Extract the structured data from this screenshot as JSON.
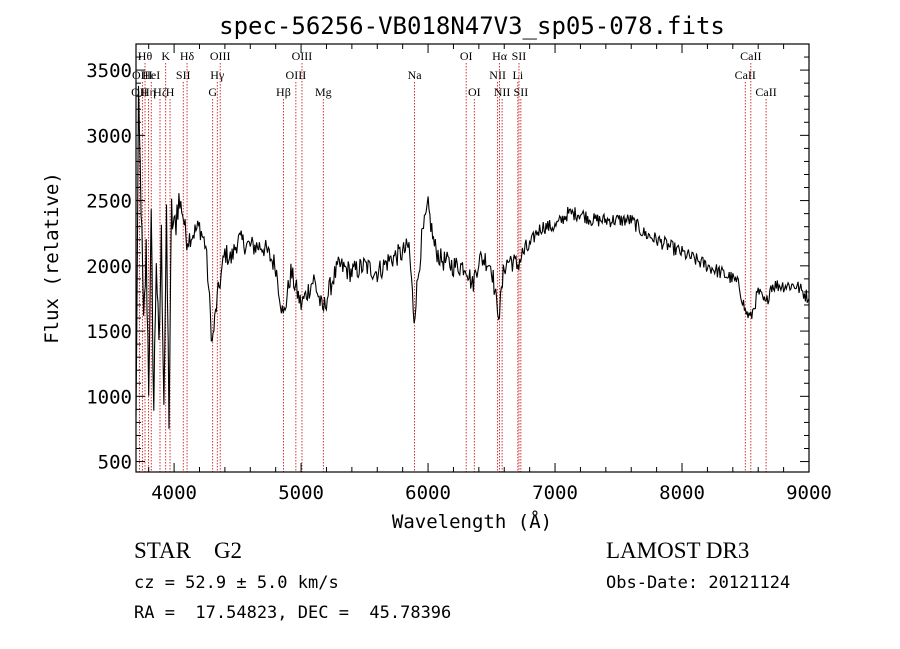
{
  "chart_data": {
    "type": "line",
    "title": "spec-56256-VB018N47V3_sp05-078.fits",
    "xlabel": "Wavelength (Å)",
    "ylabel": "Flux (relative)",
    "xlim": [
      3700,
      9000
    ],
    "ylim": [
      420,
      3700
    ],
    "xticks": [
      4000,
      5000,
      6000,
      7000,
      8000,
      9000
    ],
    "yticks": [
      500,
      1000,
      1500,
      2000,
      2500,
      3000,
      3500
    ],
    "series": [
      {
        "name": "spectrum",
        "color": "#000000",
        "x": [
          3700,
          3720,
          3740,
          3760,
          3780,
          3800,
          3820,
          3840,
          3860,
          3880,
          3900,
          3920,
          3940,
          3960,
          3980,
          4000,
          4030,
          4060,
          4100,
          4150,
          4200,
          4250,
          4300,
          4340,
          4400,
          4450,
          4500,
          4600,
          4700,
          4800,
          4860,
          4920,
          5000,
          5100,
          5170,
          5250,
          5300,
          5400,
          5500,
          5600,
          5700,
          5800,
          5850,
          5890,
          5950,
          6000,
          6050,
          6100,
          6200,
          6300,
          6350,
          6400,
          6450,
          6500,
          6540,
          6563,
          6600,
          6650,
          6700,
          6750,
          6800,
          6850,
          6900,
          6950,
          7000,
          7050,
          7100,
          7200,
          7300,
          7400,
          7500,
          7600,
          7700,
          7800,
          7900,
          8000,
          8100,
          8200,
          8300,
          8400,
          8450,
          8498,
          8542,
          8600,
          8662,
          8700,
          8800,
          8900,
          9000
        ],
        "values": [
          800,
          3200,
          2500,
          1500,
          2100,
          1100,
          2300,
          900,
          2100,
          1300,
          2200,
          1000,
          2300,
          850,
          2400,
          2250,
          2500,
          2450,
          2200,
          2250,
          2300,
          2150,
          1400,
          1750,
          2100,
          2050,
          2200,
          2150,
          2150,
          2000,
          1600,
          1950,
          1700,
          1900,
          1650,
          1900,
          2000,
          1950,
          2000,
          1950,
          2050,
          2100,
          2150,
          1600,
          2200,
          2450,
          2150,
          2050,
          2000,
          2000,
          1850,
          2050,
          2050,
          2000,
          1700,
          1650,
          2000,
          2050,
          2000,
          2100,
          2150,
          2250,
          2300,
          2300,
          2300,
          2350,
          2400,
          2400,
          2350,
          2350,
          2350,
          2350,
          2250,
          2200,
          2150,
          2100,
          2050,
          2000,
          1950,
          1900,
          1850,
          1650,
          1600,
          1800,
          1700,
          1850,
          1850,
          1850,
          1750
        ]
      }
    ],
    "line_markers": [
      {
        "wave": 3727,
        "label": "OII",
        "row": 2
      },
      {
        "wave": 3750,
        "label": "OIII",
        "row": 1
      },
      {
        "wave": 3771,
        "label": "Hθ",
        "row": 0
      },
      {
        "wave": 3798,
        "label": "Hη",
        "row": 2
      },
      {
        "wave": 3820,
        "label": "HeI",
        "row": 1
      },
      {
        "wave": 3889,
        "label": "Hζ",
        "row": 2
      },
      {
        "wave": 3934,
        "label": "K",
        "row": 0
      },
      {
        "wave": 3968,
        "label": "H",
        "row": 2
      },
      {
        "wave": 4072,
        "label": "SII",
        "row": 1
      },
      {
        "wave": 4102,
        "label": "Hδ",
        "row": 0
      },
      {
        "wave": 4304,
        "label": "G",
        "row": 2
      },
      {
        "wave": 4340,
        "label": "Hγ",
        "row": 1
      },
      {
        "wave": 4363,
        "label": "OIII",
        "row": 0
      },
      {
        "wave": 4861,
        "label": "Hβ",
        "row": 2
      },
      {
        "wave": 4959,
        "label": "OIII",
        "row": 1
      },
      {
        "wave": 5007,
        "label": "OIII",
        "row": 0
      },
      {
        "wave": 5175,
        "label": "Mg",
        "row": 2
      },
      {
        "wave": 5894,
        "label": "Na",
        "row": 1
      },
      {
        "wave": 6300,
        "label": "OI",
        "row": 0
      },
      {
        "wave": 6364,
        "label": "OI",
        "row": 2
      },
      {
        "wave": 6548,
        "label": "NII",
        "row": 1
      },
      {
        "wave": 6563,
        "label": "Hα",
        "row": 0
      },
      {
        "wave": 6583,
        "label": "NII",
        "row": 2
      },
      {
        "wave": 6707,
        "label": "Li",
        "row": 1
      },
      {
        "wave": 6716,
        "label": "SII",
        "row": 0
      },
      {
        "wave": 6731,
        "label": "SII",
        "row": 2
      },
      {
        "wave": 8498,
        "label": "CaII",
        "row": 1
      },
      {
        "wave": 8542,
        "label": "CaII",
        "row": 0
      },
      {
        "wave": 8662,
        "label": "CaII",
        "row": 2
      }
    ]
  },
  "info": {
    "class": "STAR    G2",
    "redshift": "cz = 52.9 ± 5.0 km/s",
    "coords": "RA =  17.54823, DEC =  45.78396",
    "survey": "LAMOST DR3",
    "obs_date": "Obs-Date: 20121124"
  },
  "colors": {
    "marker": "#cc0000",
    "axis": "#000000",
    "spectrum": "#000000"
  }
}
